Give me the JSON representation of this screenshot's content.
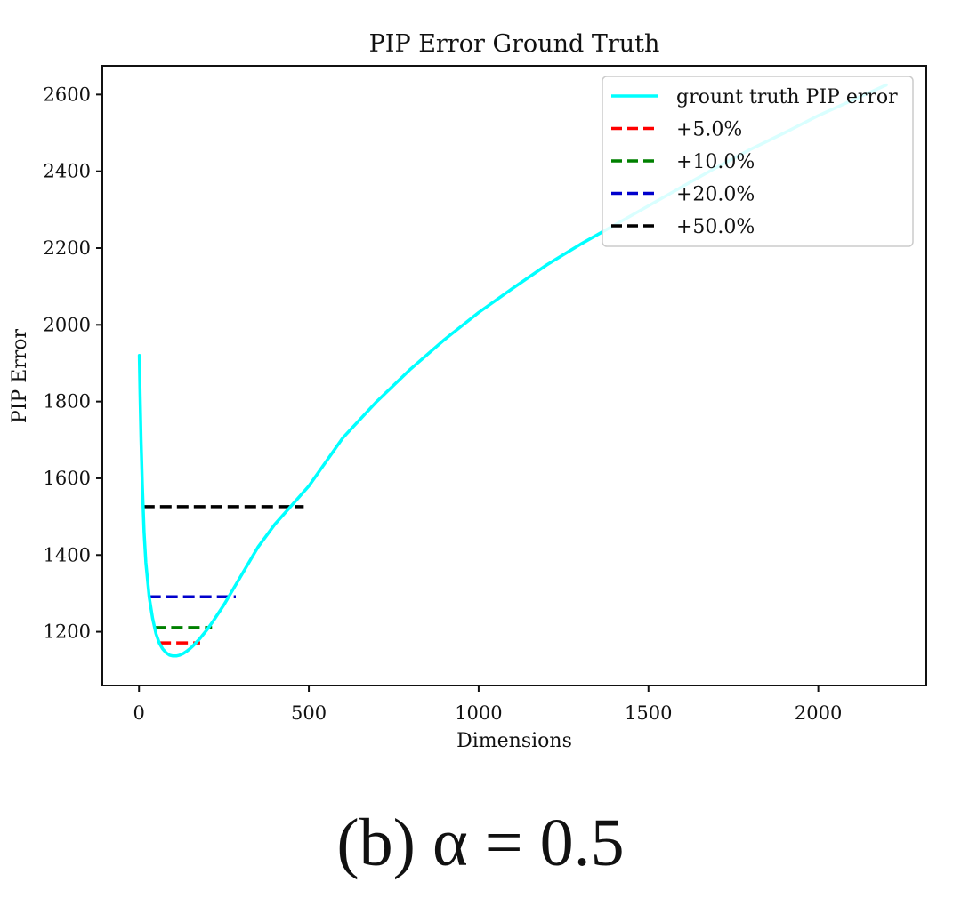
{
  "caption": "(b) α = 0.5",
  "chart_data": {
    "type": "line",
    "title": "PIP Error Ground Truth",
    "xlabel": "Dimensions",
    "ylabel": "PIP Error",
    "xlim": [
      -108,
      2318
    ],
    "ylim": [
      1060,
      2675
    ],
    "x_ticks": [
      0,
      500,
      1000,
      1500,
      2000
    ],
    "y_ticks": [
      1200,
      1400,
      1600,
      1800,
      2000,
      2200,
      2400,
      2600
    ],
    "grid": false,
    "legend_position": "top-right",
    "series": [
      {
        "name": "grount truth PIP error",
        "color": "#00ffff",
        "style": "solid",
        "x": [
          1,
          3,
          6,
          10,
          15,
          20,
          30,
          40,
          50,
          60,
          70,
          80,
          90,
          100,
          110,
          120,
          130,
          140,
          150,
          160,
          180,
          200,
          220,
          250,
          280,
          300,
          350,
          400,
          450,
          500,
          600,
          700,
          800,
          900,
          1000,
          1100,
          1200,
          1300,
          1400,
          1500,
          1600,
          1700,
          1800,
          1900,
          2000,
          2100,
          2200
        ],
        "y": [
          1920,
          1820,
          1700,
          1580,
          1460,
          1380,
          1290,
          1235,
          1195,
          1170,
          1155,
          1145,
          1139,
          1137,
          1137,
          1139,
          1143,
          1149,
          1156,
          1164,
          1183,
          1205,
          1230,
          1270,
          1315,
          1345,
          1420,
          1480,
          1530,
          1580,
          1705,
          1800,
          1885,
          1962,
          2032,
          2095,
          2156,
          2210,
          2260,
          2310,
          2360,
          2410,
          2457,
          2500,
          2545,
          2585,
          2625
        ]
      }
    ],
    "hlines": [
      {
        "name": "+5.0%",
        "color": "#ff0000",
        "y": 1171,
        "x": [
          60,
          180
        ]
      },
      {
        "name": "+10.0%",
        "color": "#008000",
        "y": 1211,
        "x": [
          45,
          215
        ]
      },
      {
        "name": "+20.0%",
        "color": "#0000cc",
        "y": 1291,
        "x": [
          30,
          285
        ]
      },
      {
        "name": "+50.0%",
        "color": "#000000",
        "y": 1526,
        "x": [
          12,
          485
        ]
      }
    ]
  }
}
